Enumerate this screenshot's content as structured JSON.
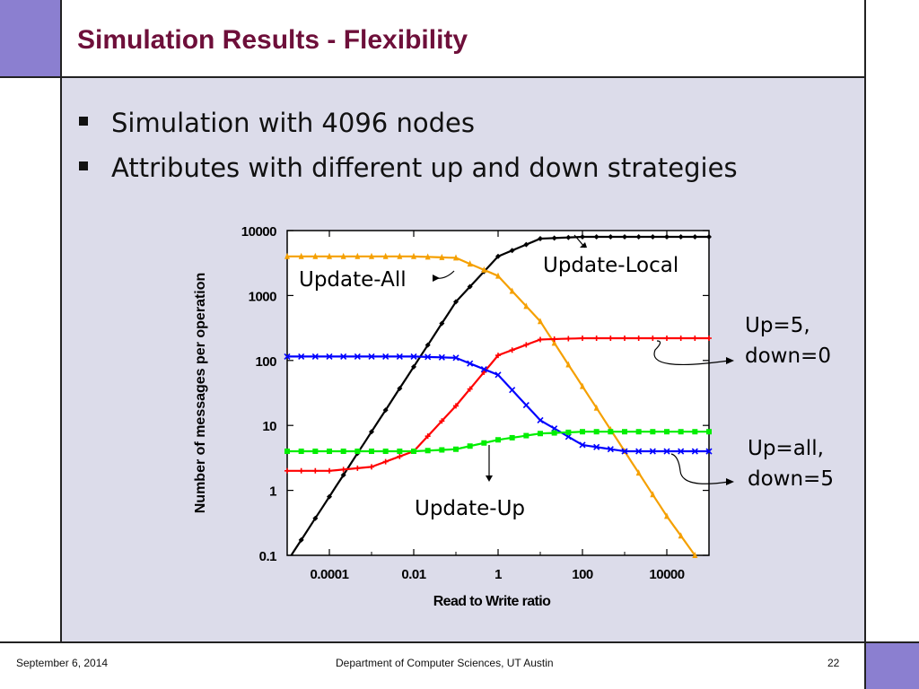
{
  "slide": {
    "title": "Simulation Results - Flexibility",
    "bullets": [
      "Simulation with 4096 nodes",
      "Attributes with different up and down strategies"
    ],
    "footer": {
      "date": "September 6, 2014",
      "department": "Department of Computer Sciences, UT Austin",
      "page": "22"
    },
    "colors": {
      "title": "#6e0f3a",
      "accent": "#8b7fd0",
      "background": "#dcdcea"
    }
  },
  "chart_data": {
    "type": "line",
    "title": "",
    "xlabel": "Read to Write ratio",
    "ylabel": "Number of messages per operation",
    "xscale": "log",
    "yscale": "log",
    "xlim": [
      1e-05,
      100000
    ],
    "ylim": [
      0.1,
      10000
    ],
    "x_ticks": [
      {
        "value": 0.0001,
        "label": "0.0001"
      },
      {
        "value": 0.01,
        "label": "0.01"
      },
      {
        "value": 1,
        "label": "1"
      },
      {
        "value": 100,
        "label": "100"
      },
      {
        "value": 10000,
        "label": "10000"
      }
    ],
    "y_ticks": [
      {
        "value": 0.1,
        "label": "0.1"
      },
      {
        "value": 1,
        "label": "1"
      },
      {
        "value": 10,
        "label": "10"
      },
      {
        "value": 100,
        "label": "100"
      },
      {
        "value": 1000,
        "label": "1000"
      },
      {
        "value": 10000,
        "label": "10000"
      }
    ],
    "grid": false,
    "series": [
      {
        "color": "#000000",
        "marker": "diamond",
        "x": [
          1e-05,
          0.0001,
          0.001,
          0.01,
          0.1,
          1,
          10,
          100,
          1000,
          10000,
          100000
        ],
        "y": [
          0.08,
          0.8,
          8,
          80,
          800,
          4000,
          7500,
          8000,
          8000,
          8000,
          8000
        ]
      },
      {
        "color": "#f5a000",
        "marker": "triangle",
        "x": [
          1e-05,
          0.0001,
          0.001,
          0.01,
          0.1,
          1,
          10,
          100,
          1000,
          10000,
          100000
        ],
        "y": [
          4000,
          4000,
          4000,
          4000,
          3800,
          2000,
          400,
          40,
          4,
          0.4,
          0.05
        ]
      },
      {
        "color": "#ff0000",
        "marker": "plus",
        "x": [
          1e-05,
          0.0001,
          0.001,
          0.01,
          0.1,
          1,
          10,
          100,
          1000,
          10000,
          100000
        ],
        "y": [
          2,
          2,
          2.3,
          4,
          20,
          120,
          210,
          220,
          220,
          220,
          220
        ]
      },
      {
        "color": "#0000ff",
        "marker": "x",
        "x": [
          1e-05,
          0.0001,
          0.001,
          0.01,
          0.1,
          1,
          10,
          100,
          1000,
          10000,
          100000
        ],
        "y": [
          115,
          115,
          115,
          115,
          110,
          60,
          12,
          5,
          4,
          4,
          4
        ]
      },
      {
        "color": "#00ee00",
        "marker": "square",
        "x": [
          1e-05,
          0.0001,
          0.001,
          0.01,
          0.1,
          1,
          10,
          100,
          1000,
          10000,
          100000
        ],
        "y": [
          4,
          4,
          4,
          4,
          4.3,
          6,
          7.5,
          8,
          8,
          8,
          8
        ]
      }
    ],
    "annotations": [
      {
        "text": "Update-All"
      },
      {
        "text": "Update-Local"
      },
      {
        "text": "Up=5,"
      },
      {
        "text": "down=0"
      },
      {
        "text": "Up=all,"
      },
      {
        "text": "down=5"
      },
      {
        "text": "Update-Up"
      }
    ]
  }
}
